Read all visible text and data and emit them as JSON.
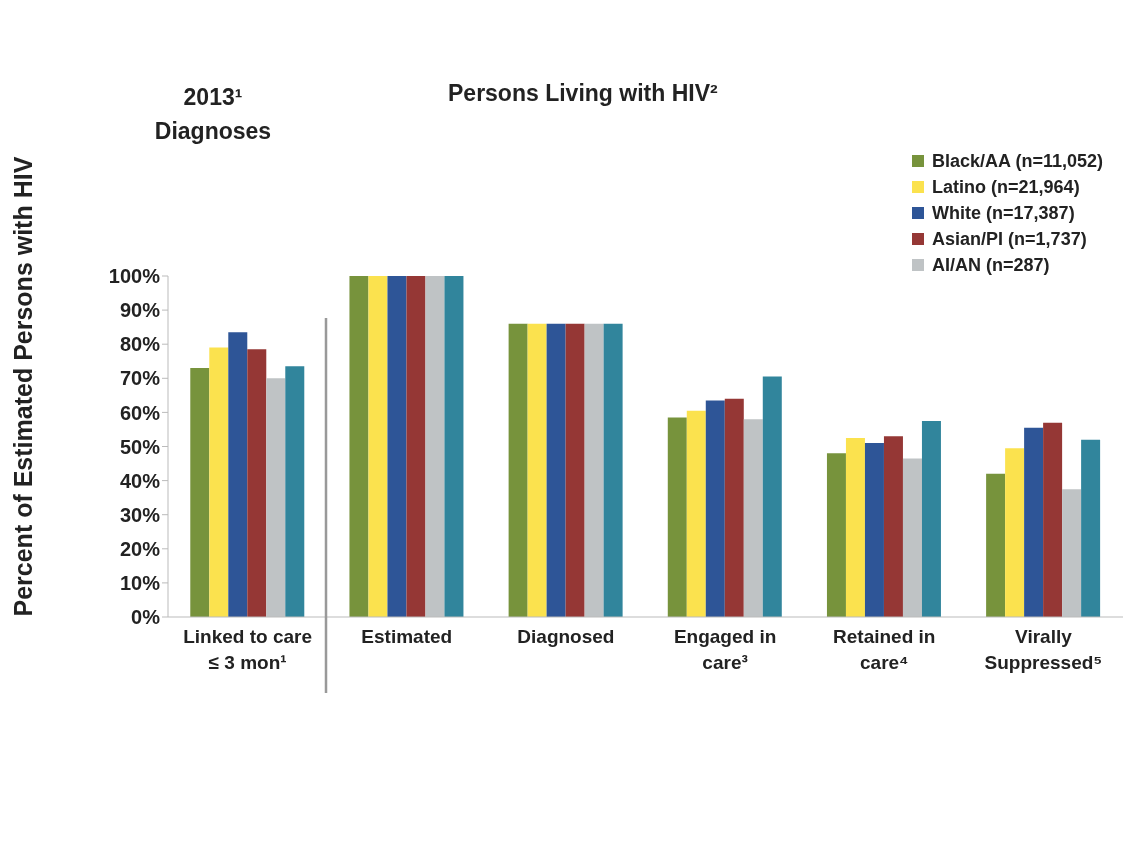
{
  "chart_data": {
    "type": "bar",
    "title": "Persons Living with HIV²",
    "ylabel": "Percent of Estimated Persons with HIV",
    "annotations": [
      "2013¹ Diagnoses"
    ],
    "categories": [
      "Linked to care ≤ 3 mon¹",
      "Estimated",
      "Diagnosed",
      "Engaged in care³",
      "Retained in care⁴",
      "Virally Suppressed⁵"
    ],
    "series": [
      {
        "name": "Black/AA (n=11,052)",
        "color": "#77933c",
        "values": [
          73,
          100,
          86,
          58.5,
          48,
          42
        ]
      },
      {
        "name": "Latino (n=21,964)",
        "color": "#fbe24e",
        "values": [
          79,
          100,
          86,
          60.5,
          52.5,
          49.5
        ]
      },
      {
        "name": "White (n=17,387)",
        "color": "#2e5597",
        "values": [
          83.5,
          100,
          86,
          63.5,
          51,
          55.5
        ]
      },
      {
        "name": "Asian/PI (n=1,737)",
        "color": "#953735",
        "values": [
          78.5,
          100,
          86,
          64,
          53,
          57
        ]
      },
      {
        "name": "AI/AN (n=287)",
        "color": "#bfc3c5",
        "values": [
          70,
          100,
          86,
          58,
          46.5,
          37.5
        ]
      },
      {
        "color": "#31859c",
        "values": [
          73.5,
          100,
          86,
          70.5,
          57.5,
          52
        ]
      }
    ],
    "ylim": [
      0,
      100
    ],
    "yticks": [
      {
        "value": 0,
        "label": "0%"
      },
      {
        "value": 10,
        "label": "10%"
      },
      {
        "value": 20,
        "label": "20%"
      },
      {
        "value": 30,
        "label": "30%"
      },
      {
        "value": 40,
        "label": "40%"
      },
      {
        "value": 50,
        "label": "50%"
      },
      {
        "value": 60,
        "label": "60%"
      },
      {
        "value": 70,
        "label": "70%"
      },
      {
        "value": 80,
        "label": "80%"
      },
      {
        "value": 90,
        "label": "90%"
      },
      {
        "value": 100,
        "label": "100%"
      }
    ],
    "grid": false,
    "legend": "top right"
  }
}
